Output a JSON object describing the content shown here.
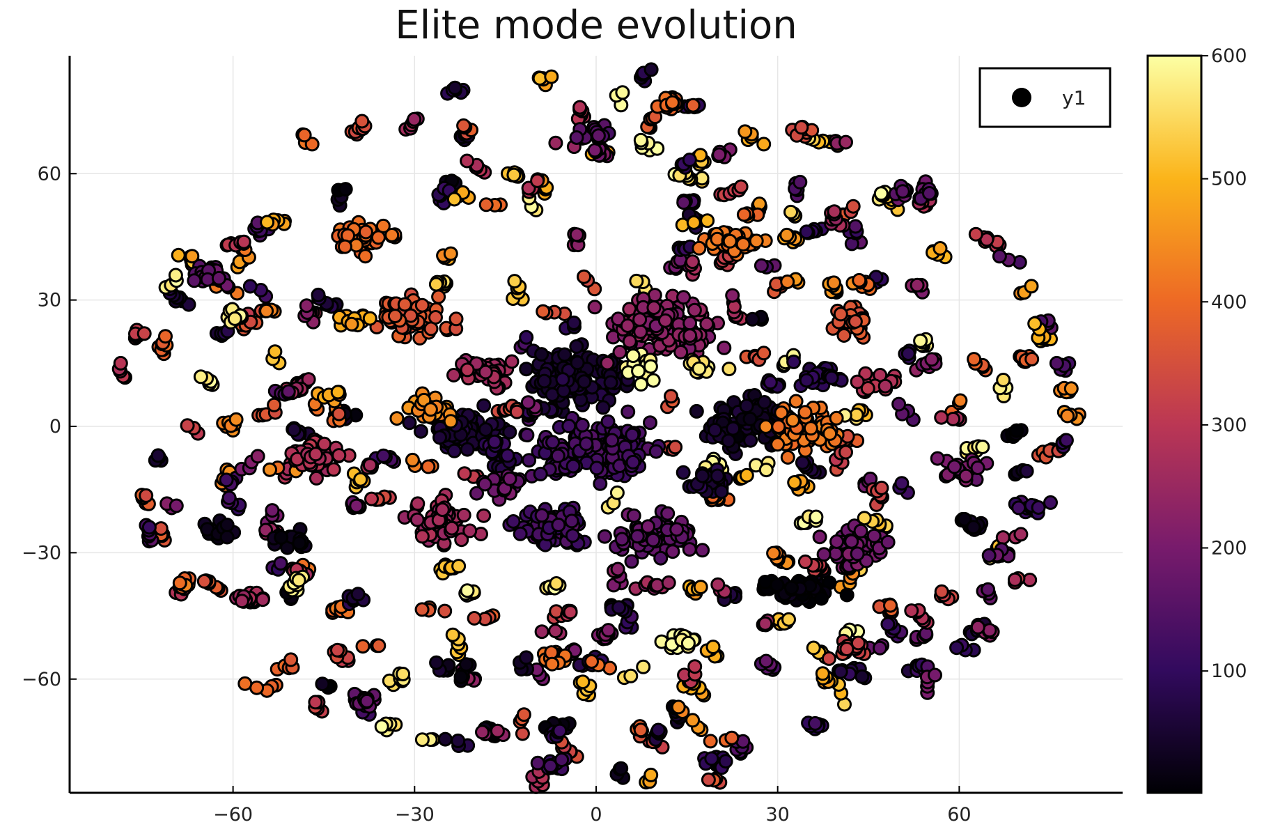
{
  "chart_data": {
    "type": "scatter",
    "title": "Elite mode evolution",
    "xlabel": "",
    "ylabel": "",
    "xlim": [
      -87,
      87
    ],
    "ylim": [
      -87,
      88
    ],
    "x_ticks": [
      -60,
      -30,
      0,
      30,
      60
    ],
    "x_tick_labels": [
      "−60",
      "−30",
      "0",
      "30",
      "60"
    ],
    "y_ticks": [
      -60,
      -30,
      0,
      30,
      60
    ],
    "y_tick_labels": [
      "−60",
      "−30",
      "0",
      "30",
      "60"
    ],
    "grid": true,
    "legend": {
      "position": "top-right",
      "entries": [
        "y1"
      ]
    },
    "colormap": "inferno",
    "colorbar": {
      "range": [
        1,
        600
      ],
      "ticks": [
        100,
        200,
        300,
        400,
        500,
        600
      ],
      "tick_labels": [
        "100",
        "200",
        "300",
        "400",
        "500",
        "600"
      ],
      "stops": [
        "#000004",
        "#320a5e",
        "#781b6c",
        "#bb3754",
        "#ed6925",
        "#fbb41a",
        "#fcffa4"
      ]
    },
    "series": [
      {
        "marker_stroke": "#000000",
        "clusters": [
          {
            "x": -3,
            "y": 12,
            "spread": [
              9,
              6
            ],
            "n": 140,
            "value": 50
          },
          {
            "x": -1,
            "y": -6,
            "spread": [
              11,
              7
            ],
            "n": 160,
            "value": 130
          },
          {
            "x": 26,
            "y": 1,
            "spread": [
              8,
              6
            ],
            "n": 110,
            "value": 40
          },
          {
            "x": -22,
            "y": -1,
            "spread": [
              7,
              5
            ],
            "n": 80,
            "value": 60
          },
          {
            "x": -18,
            "y": 13,
            "spread": [
              5,
              4
            ],
            "n": 40,
            "value": 260
          },
          {
            "x": 11,
            "y": 24,
            "spread": [
              10,
              7
            ],
            "n": 120,
            "value": 230
          },
          {
            "x": 10,
            "y": -26,
            "spread": [
              7,
              5
            ],
            "n": 80,
            "value": 170
          },
          {
            "x": -7,
            "y": -24,
            "spread": [
              6,
              5
            ],
            "n": 80,
            "value": 130
          },
          {
            "x": -26,
            "y": -23,
            "spread": [
              6,
              5
            ],
            "n": 60,
            "value": 260
          },
          {
            "x": -30,
            "y": 26,
            "spread": [
              7,
              5
            ],
            "n": 70,
            "value": 370
          },
          {
            "x": -39,
            "y": 45,
            "spread": [
              5,
              3
            ],
            "n": 40,
            "value": 400
          },
          {
            "x": 22,
            "y": 44,
            "spread": [
              5,
              3
            ],
            "n": 40,
            "value": 420
          },
          {
            "x": 34,
            "y": -1,
            "spread": [
              6,
              5
            ],
            "n": 60,
            "value": 420
          },
          {
            "x": 33,
            "y": -39,
            "spread": [
              6,
              3
            ],
            "n": 60,
            "value": 10
          },
          {
            "x": 43,
            "y": -28,
            "spread": [
              5,
              4
            ],
            "n": 45,
            "value": 190
          },
          {
            "x": 38,
            "y": 12,
            "spread": [
              4,
              3
            ],
            "n": 30,
            "value": 90
          },
          {
            "x": -46,
            "y": -7,
            "spread": [
              5,
              4
            ],
            "n": 45,
            "value": 280
          },
          {
            "x": 42,
            "y": 25,
            "spread": [
              4,
              3
            ],
            "n": 30,
            "value": 360
          },
          {
            "x": 18,
            "y": -13,
            "spread": [
              4,
              3
            ],
            "n": 30,
            "value": 60
          },
          {
            "x": -15,
            "y": -14,
            "spread": [
              4,
              3
            ],
            "n": 25,
            "value": 180
          },
          {
            "x": -62,
            "y": -25,
            "spread": [
              3,
              2
            ],
            "n": 20,
            "value": 20
          },
          {
            "x": -50,
            "y": -27,
            "spread": [
              3,
              2
            ],
            "n": 20,
            "value": 30
          },
          {
            "x": -38,
            "y": -65,
            "spread": [
              3,
              2
            ],
            "n": 18,
            "value": 180
          },
          {
            "x": -64,
            "y": 36,
            "spread": [
              3,
              3
            ],
            "n": 20,
            "value": 160
          },
          {
            "x": 62,
            "y": -23,
            "spread": [
              3,
              2
            ],
            "n": 15,
            "value": 40
          },
          {
            "x": 42,
            "y": -53,
            "spread": [
              3,
              2
            ],
            "n": 18,
            "value": 320
          },
          {
            "x": -57,
            "y": -41,
            "spread": [
              3,
              2
            ],
            "n": 18,
            "value": 260
          },
          {
            "x": 0,
            "y": 70,
            "spread": [
              3,
              2
            ],
            "n": 15,
            "value": 150
          },
          {
            "x": 12,
            "y": 77,
            "spread": [
              3,
              2
            ],
            "n": 15,
            "value": 400
          },
          {
            "x": 46,
            "y": 10,
            "spread": [
              4,
              3
            ],
            "n": 20,
            "value": 290
          },
          {
            "x": 72,
            "y": -19,
            "spread": [
              3,
              2
            ],
            "n": 12,
            "value": 110
          },
          {
            "x": 54,
            "y": 56,
            "spread": [
              2,
              2
            ],
            "n": 12,
            "value": 160
          },
          {
            "x": 61,
            "y": -10,
            "spread": [
              4,
              3
            ],
            "n": 20,
            "value": 200
          },
          {
            "x": 4,
            "y": -43,
            "spread": [
              2,
              2
            ],
            "n": 10,
            "value": 70
          },
          {
            "x": 20,
            "y": -80,
            "spread": [
              3,
              2
            ],
            "n": 12,
            "value": 100
          },
          {
            "x": -7,
            "y": -80,
            "spread": [
              3,
              2
            ],
            "n": 12,
            "value": 120
          },
          {
            "x": -7,
            "y": -55,
            "spread": [
              3,
              2
            ],
            "n": 15,
            "value": 410
          },
          {
            "x": 14,
            "y": -51,
            "spread": [
              3,
              2
            ],
            "n": 15,
            "value": 590
          },
          {
            "x": -40,
            "y": 25,
            "spread": [
              3,
              2
            ],
            "n": 15,
            "value": 480
          },
          {
            "x": -60,
            "y": 26,
            "spread": [
              2,
              2
            ],
            "n": 12,
            "value": 580
          },
          {
            "x": 34,
            "y": 70,
            "spread": [
              2,
              2
            ],
            "n": 10,
            "value": 350
          },
          {
            "x": 8,
            "y": 14,
            "spread": [
              4,
              3
            ],
            "n": 15,
            "value": 590
          },
          {
            "x": 18,
            "y": 14,
            "spread": [
              3,
              2
            ],
            "n": 12,
            "value": 560
          },
          {
            "x": -16,
            "y": -5,
            "spread": [
              3,
              3
            ],
            "n": 15,
            "value": 100
          },
          {
            "x": -27,
            "y": 4,
            "spread": [
              5,
              3
            ],
            "n": 25,
            "value": 450
          }
        ]
      }
    ],
    "scatter_fill": {
      "seed": 20240611,
      "n": 1500,
      "radius": 80
    }
  }
}
